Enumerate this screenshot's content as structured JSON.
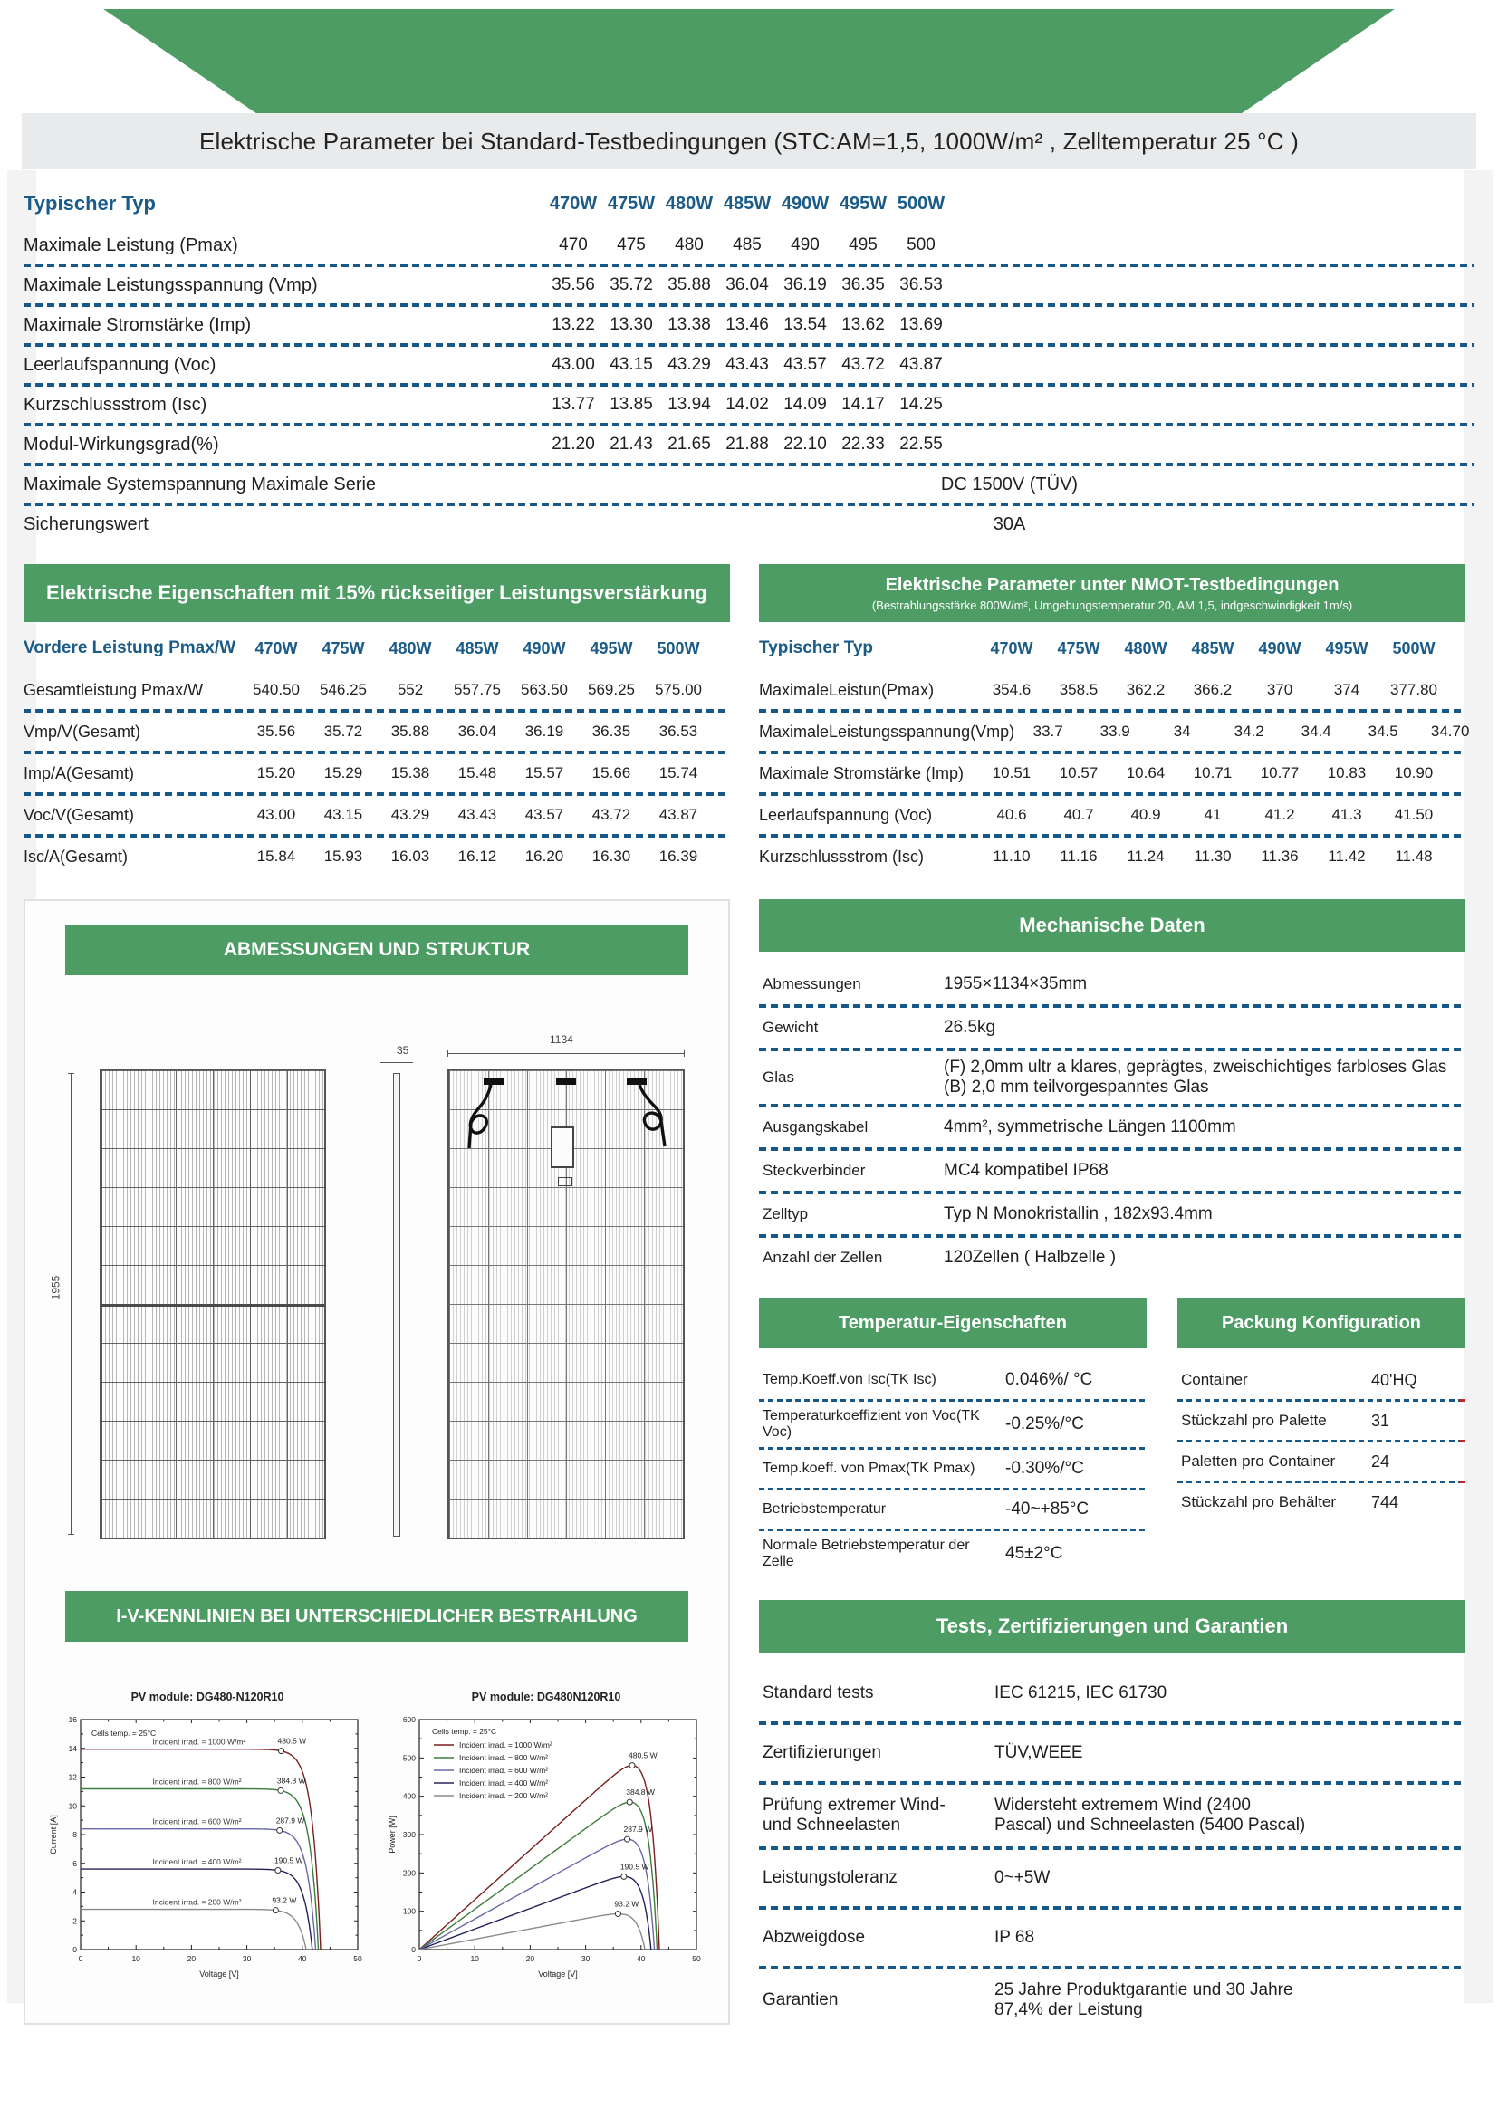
{
  "colors": {
    "green": "#4d9c64",
    "table_header_blue": "#1a5b88",
    "dotted_line_blue": "#17588a",
    "title_bar_gray": "#e9eaeb",
    "red_line_end": "#cc2222"
  },
  "title_bar": "Elektrische Parameter bei Standard-Testbedingungen (STC:AM=1,5, 1000W/m² , Zelltemperatur 25 °C )",
  "stc_table": {
    "header_label": "Typischer Typ",
    "columns": [
      "470W",
      "475W",
      "480W",
      "485W",
      "490W",
      "495W",
      "500W"
    ],
    "rows": [
      {
        "label": "Maximale Leistung (Pmax)",
        "values": [
          "470",
          "475",
          "480",
          "485",
          "490",
          "495",
          "500"
        ]
      },
      {
        "label": "Maximale Leistungsspannung (Vmp)",
        "values": [
          "35.56",
          "35.72",
          "35.88",
          "36.04",
          "36.19",
          "36.35",
          "36.53"
        ]
      },
      {
        "label": "Maximale Stromstärke (Imp)",
        "values": [
          "13.22",
          "13.30",
          "13.38",
          "13.46",
          "13.54",
          "13.62",
          "13.69"
        ]
      },
      {
        "label": "Leerlaufspannung (Voc)",
        "values": [
          "43.00",
          "43.15",
          "43.29",
          "43.43",
          "43.57",
          "43.72",
          "43.87"
        ]
      },
      {
        "label": "Kurzschlussstrom (Isc)",
        "values": [
          "13.77",
          "13.85",
          "13.94",
          "14.02",
          "14.09",
          "14.17",
          "14.25"
        ]
      },
      {
        "label": "Modul-Wirkungsgrad(%)",
        "values": [
          "21.20",
          "21.43",
          "21.65",
          "21.88",
          "22.10",
          "22.33",
          "22.55"
        ]
      },
      {
        "label": "Maximale Systemspannung Maximale Serie",
        "merged": "DC 1500V (TÜV)"
      },
      {
        "label": "Sicherungswert",
        "merged": "30A"
      }
    ]
  },
  "backside_table": {
    "title": "Elektrische Eigenschaften mit 15% rückseitiger Leistungsverstärkung",
    "header_label": "Vordere Leistung Pmax/W",
    "columns": [
      "470W",
      "475W",
      "480W",
      "485W",
      "490W",
      "495W",
      "500W"
    ],
    "rows": [
      {
        "label": "Gesamtleistung Pmax/W",
        "values": [
          "540.50",
          "546.25",
          "552",
          "557.75",
          "563.50",
          "569.25",
          "575.00"
        ]
      },
      {
        "label": "Vmp/V(Gesamt)",
        "values": [
          "35.56",
          "35.72",
          "35.88",
          "36.04",
          "36.19",
          "36.35",
          "36.53"
        ]
      },
      {
        "label": "Imp/A(Gesamt)",
        "values": [
          "15.20",
          "15.29",
          "15.38",
          "15.48",
          "15.57",
          "15.66",
          "15.74"
        ]
      },
      {
        "label": "Voc/V(Gesamt)",
        "values": [
          "43.00",
          "43.15",
          "43.29",
          "43.43",
          "43.57",
          "43.72",
          "43.87"
        ]
      },
      {
        "label": "Isc/A(Gesamt)",
        "values": [
          "15.84",
          "15.93",
          "16.03",
          "16.12",
          "16.20",
          "16.30",
          "16.39"
        ]
      }
    ]
  },
  "nmot_table": {
    "title": "Elektrische Parameter unter NMOT-Testbedingungen",
    "subtitle": "(Bestrahlungsstärke 800W/m², Umgebungstemperatur 20, AM 1,5, indgeschwindigkeit 1m/s)",
    "header_label": "Typischer Typ",
    "columns": [
      "470W",
      "475W",
      "480W",
      "485W",
      "490W",
      "495W",
      "500W"
    ],
    "rows": [
      {
        "label": "MaximaleLeistun(Pmax)",
        "values": [
          "354.6",
          "358.5",
          "362.2",
          "366.2",
          "370",
          "374",
          "377.80"
        ]
      },
      {
        "label": "MaximaleLeistungsspannung(Vmp)",
        "values": [
          "33.7",
          "33.9",
          "34",
          "34.2",
          "34.4",
          "34.5",
          "34.70"
        ]
      },
      {
        "label": "Maximale Stromstärke (Imp)",
        "values": [
          "10.51",
          "10.57",
          "10.64",
          "10.71",
          "10.77",
          "10.83",
          "10.90"
        ]
      },
      {
        "label": "Leerlaufspannung (Voc)",
        "values": [
          "40.6",
          "40.7",
          "40.9",
          "41",
          "41.2",
          "41.3",
          "41.50"
        ]
      },
      {
        "label": "Kurzschlussstrom (Isc)",
        "values": [
          "11.10",
          "11.16",
          "11.24",
          "11.30",
          "11.36",
          "11.42",
          "11.48"
        ]
      }
    ]
  },
  "dimensions_section": {
    "title": "ABMESSUNGEN UND STRUKTUR",
    "height_label": "1955",
    "thickness_label": "35",
    "width_label": "1134"
  },
  "mechanical": {
    "title": "Mechanische Daten",
    "rows": [
      {
        "label": "Abmessungen",
        "value": "1955×1134×35mm"
      },
      {
        "label": "Gewicht",
        "value": "26.5kg"
      },
      {
        "label": "Glas",
        "value": "(F) 2,0mm ultr a klares, geprägtes, zweischichtiges farbloses Glas\n (B) 2,0 mm teilvorgespanntes Glas"
      },
      {
        "label": "Ausgangskabel",
        "value": "4mm², symmetrische Längen 1100mm"
      },
      {
        "label": "Steckverbinder",
        "value": "MC4 kompatibel IP68"
      },
      {
        "label": "Zelltyp",
        "value": "Typ N Monokristallin , 182x93.4mm"
      },
      {
        "label": "Anzahl der Zellen",
        "value": "120Zellen ( Halbzelle )"
      }
    ]
  },
  "temperature": {
    "title": "Temperatur-Eigenschaften",
    "rows": [
      {
        "label": "Temp.Koeff.von Isc(TK Isc)",
        "value": "0.046%/ °C"
      },
      {
        "label": "Temperaturkoeffizient von Voc(TK Voc)",
        "value": "-0.25%/°C"
      },
      {
        "label": "Temp.koeff. von Pmax(TK Pmax)",
        "value": "-0.30%/°C"
      },
      {
        "label": "Betriebstemperatur",
        "value": "-40~+85°C"
      },
      {
        "label": "Normale Betriebstemperatur der\nZelle",
        "value": "45±2°C"
      }
    ]
  },
  "packing": {
    "title": "Packung Konfiguration",
    "rows": [
      {
        "label": "Container",
        "value": "40'HQ"
      },
      {
        "label": "Stückzahl pro Palette",
        "value": "31"
      },
      {
        "label": "Paletten pro Container",
        "value": "24"
      },
      {
        "label": "Stückzahl pro Behälter",
        "value": "744"
      }
    ]
  },
  "iv_section": {
    "title": "I-V-KENNLINIEN BEI UNTERSCHIEDLICHER BESTRAHLUNG"
  },
  "tests": {
    "title": "Tests, Zertifizierungen und Garantien",
    "rows": [
      {
        "label": "Standard tests",
        "value": "IEC 61215, IEC 61730"
      },
      {
        "label": "Zertifizierungen",
        "value": "TÜV,WEEE"
      },
      {
        "label": "Prüfung extremer Wind-\nund Schneelasten",
        "value": "Widersteht extremem Wind (2400\nPascal) und Schneelasten (5400 Pascal)"
      },
      {
        "label": "Leistungstoleranz",
        "value": "0~+5W"
      },
      {
        "label": "Abzweigdose",
        "value": "IP 68"
      },
      {
        "label": "Garantien",
        "value": "25 Jahre Produktgarantie und 30 Jahre\n87,4% der Leistung"
      }
    ]
  },
  "chart_data": [
    {
      "type": "line",
      "mode": "iv",
      "title": "PV module: DG480-N120R10",
      "note": "Cells temp. = 25°C",
      "xlabel": "Voltage [V]",
      "ylabel": "Current [A]",
      "xlim": [
        0,
        50
      ],
      "ylim": [
        0,
        16
      ],
      "x_ticks": [
        0,
        10,
        20,
        30,
        40,
        50
      ],
      "y_ticks": [
        0,
        2,
        4,
        6,
        8,
        10,
        12,
        14,
        16
      ],
      "legend_position": "inline-labels",
      "grid": false,
      "series": [
        {
          "name": "Incident irrad. = 1000 W/m²",
          "irradiance_wm2": 1000,
          "isc": 13.94,
          "voc": 43.3,
          "vmp": 36.2,
          "pmax": 480.5,
          "pmax_label": "480.5 W",
          "color": "#7b1f1f"
        },
        {
          "name": "Incident irrad. = 800 W/m²",
          "irradiance_wm2": 800,
          "isc": 11.18,
          "voc": 42.9,
          "vmp": 36.1,
          "pmax": 384.8,
          "pmax_label": "384.8 W",
          "color": "#3c7d3c"
        },
        {
          "name": "Incident irrad. = 600 W/m²",
          "irradiance_wm2": 600,
          "isc": 8.4,
          "voc": 42.4,
          "vmp": 35.9,
          "pmax": 287.9,
          "pmax_label": "287.9 W",
          "color": "#6868a8"
        },
        {
          "name": "Incident irrad. = 400 W/m²",
          "irradiance_wm2": 400,
          "isc": 5.6,
          "voc": 41.8,
          "vmp": 35.6,
          "pmax": 190.5,
          "pmax_label": "190.5 W",
          "color": "#23235c"
        },
        {
          "name": "Incident irrad. = 200 W/m²",
          "irradiance_wm2": 200,
          "isc": 2.8,
          "voc": 40.7,
          "vmp": 35.2,
          "pmax": 93.2,
          "pmax_label": "93.2 W",
          "color": "#8a8a8a"
        }
      ]
    },
    {
      "type": "line",
      "mode": "pv",
      "title": "PV module: DG480N120R10",
      "note": "Cells temp. = 25°C",
      "xlabel": "Voltage [V]",
      "ylabel": "Power [W]",
      "xlim": [
        0,
        50
      ],
      "ylim": [
        0,
        600
      ],
      "x_ticks": [
        0,
        10,
        20,
        30,
        40,
        50
      ],
      "y_ticks": [
        0,
        100,
        200,
        300,
        400,
        500,
        600
      ],
      "legend_position": "upper-left",
      "grid": false,
      "series": [
        {
          "name": "Incident irrad. = 1000 W/m²",
          "irradiance_wm2": 1000,
          "isc": 13.94,
          "voc": 43.3,
          "vmp": 36.2,
          "pmax": 480.5,
          "pmax_label": "480.5 W",
          "color": "#7b1f1f"
        },
        {
          "name": "Incident irrad. = 800 W/m²",
          "irradiance_wm2": 800,
          "isc": 11.18,
          "voc": 42.9,
          "vmp": 36.1,
          "pmax": 384.8,
          "pmax_label": "384.8 W",
          "color": "#3c7d3c"
        },
        {
          "name": "Incident irrad. = 600 W/m²",
          "irradiance_wm2": 600,
          "isc": 8.4,
          "voc": 42.4,
          "vmp": 35.9,
          "pmax": 287.9,
          "pmax_label": "287.9 W",
          "color": "#6868a8"
        },
        {
          "name": "Incident irrad. = 400 W/m²",
          "irradiance_wm2": 400,
          "isc": 5.6,
          "voc": 41.8,
          "vmp": 35.6,
          "pmax": 190.5,
          "pmax_label": "190.5 W",
          "color": "#23235c"
        },
        {
          "name": "Incident irrad. = 200 W/m²",
          "irradiance_wm2": 200,
          "isc": 2.8,
          "voc": 40.7,
          "vmp": 35.2,
          "pmax": 93.2,
          "pmax_label": "93.2 W",
          "color": "#8a8a8a"
        }
      ]
    }
  ]
}
